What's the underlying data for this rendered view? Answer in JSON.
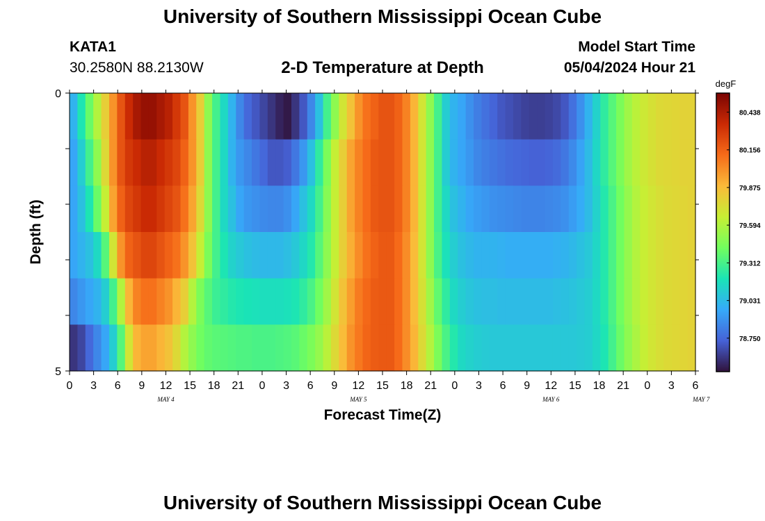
{
  "header": {
    "title": "University of Southern Mississippi Ocean Cube",
    "station_id": "KATA1",
    "station_coords": "30.2580N  88.2130W",
    "plot_title": "2-D Temperature at Depth",
    "model_start_label": "Model Start Time",
    "model_start_value": "05/04/2024 Hour 21"
  },
  "footer": {
    "title": "University of Southern Mississippi Ocean Cube"
  },
  "chart_data": {
    "type": "heatmap",
    "xlabel": "Forecast Time(Z)",
    "ylabel": "Depth (ft)",
    "x_tick_labels": [
      "0",
      "3",
      "6",
      "9",
      "12",
      "15",
      "18",
      "21",
      "0",
      "3",
      "6",
      "9",
      "12",
      "15",
      "18",
      "21",
      "0",
      "3",
      "6",
      "9",
      "12",
      "15",
      "18",
      "21",
      "0",
      "3",
      "6"
    ],
    "day_labels": [
      "MAY 4",
      "MAY 5",
      "MAY 6",
      "MAY 7"
    ],
    "y_tick_labels": [
      "0",
      "5"
    ],
    "ylim": [
      0,
      5
    ],
    "x_hours": [
      0,
      1,
      2,
      3,
      4,
      5,
      6,
      7,
      8,
      9,
      10,
      11,
      12,
      13,
      14,
      15,
      16,
      17,
      18,
      19,
      20,
      21,
      22,
      23,
      24,
      25,
      26,
      27,
      28,
      29,
      30,
      31,
      32,
      33,
      34,
      35,
      36,
      37,
      38,
      39,
      40,
      41,
      42,
      43,
      44,
      45,
      46,
      47,
      48,
      49,
      50,
      51,
      52,
      53,
      54,
      55,
      56,
      57,
      58,
      59,
      60,
      61,
      62,
      63,
      64,
      65,
      66,
      67,
      68,
      69,
      70,
      71,
      72,
      73,
      74,
      75,
      76,
      77,
      78
    ],
    "depths_ft": [
      0,
      1,
      2,
      3,
      4,
      5
    ],
    "values": [
      [
        79.0,
        79.2,
        79.4,
        79.6,
        79.8,
        80.0,
        80.2,
        80.35,
        80.45,
        80.5,
        80.5,
        80.45,
        80.4,
        80.3,
        80.2,
        80.0,
        79.8,
        79.5,
        79.3,
        79.15,
        79.0,
        78.85,
        78.75,
        78.7,
        78.65,
        78.6,
        78.55,
        78.52,
        78.6,
        78.7,
        78.85,
        79.05,
        79.3,
        79.5,
        79.7,
        79.85,
        80.0,
        80.1,
        80.15,
        80.2,
        80.2,
        80.15,
        80.05,
        79.9,
        79.7,
        79.5,
        79.3,
        79.1,
        79.0,
        78.95,
        78.88,
        78.82,
        78.78,
        78.74,
        78.7,
        78.68,
        78.66,
        78.64,
        78.63,
        78.63,
        78.64,
        78.66,
        78.7,
        78.78,
        78.88,
        79.0,
        79.12,
        79.25,
        79.35,
        79.45,
        79.55,
        79.62,
        79.68,
        79.72,
        79.75,
        79.76,
        79.77,
        79.78,
        79.78
      ],
      [
        78.95,
        79.1,
        79.3,
        79.5,
        79.75,
        80.0,
        80.2,
        80.3,
        80.35,
        80.4,
        80.4,
        80.35,
        80.3,
        80.25,
        80.15,
        80.0,
        79.8,
        79.5,
        79.3,
        79.15,
        79.0,
        78.9,
        78.85,
        78.8,
        78.75,
        78.7,
        78.7,
        78.72,
        78.8,
        78.9,
        79.05,
        79.25,
        79.45,
        79.65,
        79.8,
        79.95,
        80.05,
        80.12,
        80.18,
        80.2,
        80.2,
        80.15,
        80.05,
        79.9,
        79.7,
        79.5,
        79.3,
        79.1,
        79.0,
        78.95,
        78.9,
        78.85,
        78.82,
        78.8,
        78.78,
        78.76,
        78.75,
        78.74,
        78.73,
        78.73,
        78.74,
        78.76,
        78.8,
        78.86,
        78.94,
        79.03,
        79.14,
        79.25,
        79.35,
        79.45,
        79.55,
        79.62,
        79.68,
        79.72,
        79.75,
        79.76,
        79.77,
        79.78,
        79.78
      ],
      [
        78.95,
        79.05,
        79.2,
        79.4,
        79.65,
        79.95,
        80.15,
        80.25,
        80.3,
        80.35,
        80.35,
        80.3,
        80.25,
        80.2,
        80.1,
        79.95,
        79.75,
        79.5,
        79.3,
        79.15,
        79.05,
        78.95,
        78.9,
        78.88,
        78.86,
        78.85,
        78.85,
        78.88,
        78.95,
        79.05,
        79.15,
        79.3,
        79.48,
        79.65,
        79.8,
        79.95,
        80.05,
        80.12,
        80.18,
        80.2,
        80.2,
        80.15,
        80.05,
        79.9,
        79.7,
        79.5,
        79.3,
        79.15,
        79.05,
        79.0,
        78.95,
        78.92,
        78.9,
        78.88,
        78.87,
        78.86,
        78.85,
        78.84,
        78.84,
        78.84,
        78.85,
        78.86,
        78.88,
        78.92,
        78.97,
        79.03,
        79.12,
        79.22,
        79.32,
        79.42,
        79.52,
        79.6,
        79.66,
        79.7,
        79.73,
        79.75,
        79.76,
        79.77,
        79.78
      ],
      [
        78.95,
        79.0,
        79.05,
        79.15,
        79.35,
        79.7,
        80.0,
        80.15,
        80.2,
        80.25,
        80.25,
        80.2,
        80.15,
        80.1,
        80.0,
        79.85,
        79.65,
        79.45,
        79.3,
        79.2,
        79.12,
        79.08,
        79.05,
        79.03,
        79.02,
        79.02,
        79.02,
        79.04,
        79.08,
        79.14,
        79.22,
        79.35,
        79.5,
        79.65,
        79.8,
        79.92,
        80.02,
        80.1,
        80.15,
        80.18,
        80.18,
        80.12,
        80.02,
        79.88,
        79.7,
        79.5,
        79.32,
        79.18,
        79.1,
        79.05,
        79.02,
        79.0,
        79.0,
        79.0,
        78.99,
        78.98,
        78.98,
        78.98,
        78.98,
        78.98,
        78.98,
        78.99,
        79.0,
        79.02,
        79.05,
        79.08,
        79.14,
        79.22,
        79.32,
        79.42,
        79.52,
        79.6,
        79.66,
        79.7,
        79.73,
        79.75,
        79.76,
        79.77,
        79.78
      ],
      [
        78.85,
        78.9,
        78.95,
        79.0,
        79.1,
        79.3,
        79.6,
        79.9,
        80.05,
        80.1,
        80.1,
        80.05,
        80.0,
        79.9,
        79.8,
        79.6,
        79.45,
        79.35,
        79.28,
        79.25,
        79.22,
        79.2,
        79.19,
        79.18,
        79.17,
        79.17,
        79.17,
        79.18,
        79.2,
        79.25,
        79.32,
        79.42,
        79.55,
        79.7,
        79.85,
        79.97,
        80.07,
        80.13,
        80.17,
        80.18,
        80.18,
        80.12,
        80.02,
        79.88,
        79.72,
        79.55,
        79.38,
        79.25,
        79.15,
        79.1,
        79.07,
        79.05,
        79.04,
        79.04,
        79.03,
        79.03,
        79.03,
        79.03,
        79.03,
        79.03,
        79.03,
        79.04,
        79.05,
        79.06,
        79.08,
        79.1,
        79.15,
        79.22,
        79.32,
        79.42,
        79.52,
        79.6,
        79.66,
        79.7,
        79.73,
        79.75,
        79.76,
        79.77,
        79.78
      ],
      [
        78.6,
        78.65,
        78.75,
        78.85,
        78.95,
        79.1,
        79.35,
        79.7,
        79.9,
        79.95,
        79.95,
        79.9,
        79.85,
        79.75,
        79.6,
        79.5,
        79.42,
        79.38,
        79.36,
        79.35,
        79.34,
        79.33,
        79.33,
        79.32,
        79.32,
        79.32,
        79.33,
        79.34,
        79.36,
        79.4,
        79.45,
        79.52,
        79.62,
        79.75,
        79.88,
        80.0,
        80.08,
        80.14,
        80.17,
        80.18,
        80.18,
        80.12,
        80.02,
        79.9,
        79.75,
        79.6,
        79.45,
        79.32,
        79.22,
        79.15,
        79.12,
        79.1,
        79.09,
        79.08,
        79.08,
        79.08,
        79.08,
        79.08,
        79.08,
        79.08,
        79.08,
        79.08,
        79.08,
        79.08,
        79.09,
        79.1,
        79.14,
        79.2,
        79.3,
        79.4,
        79.5,
        79.58,
        79.65,
        79.7,
        79.73,
        79.75,
        79.76,
        79.77,
        79.78
      ]
    ],
    "colorbar": {
      "unit": "degF",
      "min": 78.5,
      "max": 80.58,
      "tick_labels": [
        "80.438",
        "80.156",
        "79.875",
        "79.594",
        "79.312",
        "79.031",
        "78.750"
      ],
      "tick_values": [
        80.438,
        80.156,
        79.875,
        79.594,
        79.312,
        79.031,
        78.75
      ],
      "colormap": [
        "#30123b",
        "#4662d7",
        "#36aaf9",
        "#1ae4b6",
        "#72fe5e",
        "#c7ef34",
        "#faba39",
        "#f66b19",
        "#ca2a04",
        "#7a0403"
      ]
    },
    "grid": false
  }
}
